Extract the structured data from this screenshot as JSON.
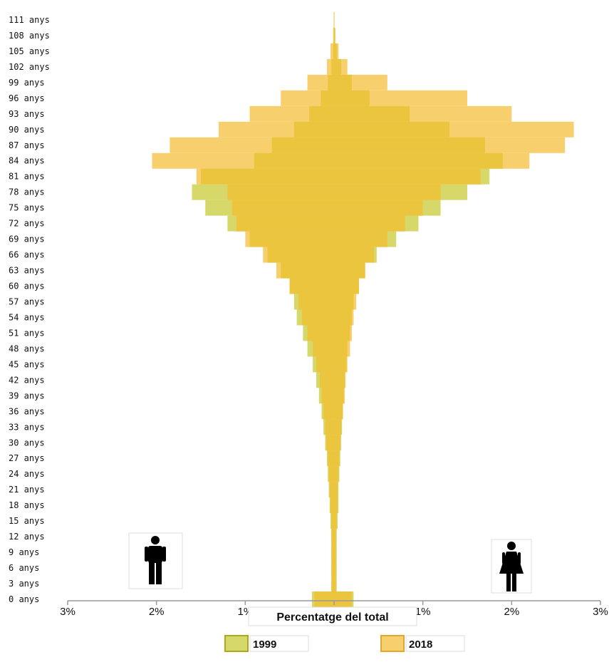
{
  "chart_data": {
    "type": "bar",
    "subtype": "population-pyramid",
    "xlabel": "Percentatge del total",
    "x_ticks": [
      "3%",
      "2%",
      "1%",
      "0%",
      "1%",
      "2%",
      "3%"
    ],
    "xlim": [
      -3,
      3
    ],
    "ylim": [
      0,
      111
    ],
    "y_tick_labels": [
      "0 anys",
      "3 anys",
      "6 anys",
      "9 anys",
      "12 anys",
      "15 anys",
      "18 anys",
      "21 anys",
      "24 anys",
      "27 anys",
      "30 anys",
      "33 anys",
      "36 anys",
      "39 anys",
      "42 anys",
      "45 anys",
      "48 anys",
      "51 anys",
      "54 anys",
      "57 anys",
      "60 anys",
      "63 anys",
      "66 anys",
      "69 anys",
      "72 anys",
      "75 anys",
      "78 anys",
      "81 anys",
      "84 anys",
      "87 anys",
      "90 anys",
      "93 anys",
      "96 anys",
      "99 anys",
      "102 anys",
      "105 anys",
      "108 anys",
      "111 anys"
    ],
    "age_step": 3,
    "legend_placement": "bottom",
    "left_icon": "male-icon",
    "right_icon": "female-icon",
    "colors": {
      "1999": "#d6d86a",
      "2018": "#f7cf6d",
      "overlap": "#ecc53e",
      "axis": "#999999"
    },
    "series": [
      {
        "name": "1999",
        "male": [
          0.25,
          0.03,
          0.03,
          0.03,
          0.03,
          0.04,
          0.05,
          0.06,
          0.07,
          0.08,
          0.1,
          0.12,
          0.14,
          0.17,
          0.2,
          0.24,
          0.3,
          0.35,
          0.42,
          0.45,
          0.5,
          0.6,
          0.75,
          0.95,
          1.2,
          1.45,
          1.6,
          1.5,
          0.9,
          0.7,
          0.45,
          0.28,
          0.15,
          0.07,
          0.03,
          0.01,
          0.005,
          0.002
        ],
        "female": [
          0.22,
          0.03,
          0.03,
          0.03,
          0.03,
          0.04,
          0.05,
          0.05,
          0.06,
          0.07,
          0.08,
          0.09,
          0.1,
          0.11,
          0.12,
          0.14,
          0.15,
          0.18,
          0.2,
          0.22,
          0.28,
          0.35,
          0.48,
          0.7,
          0.95,
          1.2,
          1.5,
          1.75,
          1.9,
          1.7,
          1.3,
          0.85,
          0.4,
          0.2,
          0.08,
          0.03,
          0.01,
          0.003
        ]
      },
      {
        "name": "2018",
        "male": [
          0.22,
          0.03,
          0.03,
          0.03,
          0.03,
          0.03,
          0.04,
          0.05,
          0.06,
          0.07,
          0.09,
          0.1,
          0.12,
          0.14,
          0.16,
          0.2,
          0.24,
          0.3,
          0.36,
          0.4,
          0.5,
          0.65,
          0.8,
          1.0,
          1.1,
          1.15,
          1.2,
          1.55,
          2.05,
          1.85,
          1.3,
          0.95,
          0.6,
          0.3,
          0.08,
          0.04,
          0.01,
          0.004
        ],
        "female": [
          0.2,
          0.02,
          0.02,
          0.02,
          0.02,
          0.03,
          0.04,
          0.04,
          0.05,
          0.06,
          0.07,
          0.08,
          0.1,
          0.12,
          0.13,
          0.15,
          0.18,
          0.2,
          0.22,
          0.25,
          0.28,
          0.35,
          0.45,
          0.6,
          0.8,
          1.0,
          1.2,
          1.65,
          2.2,
          2.6,
          2.7,
          2.0,
          1.5,
          0.6,
          0.15,
          0.05,
          0.015,
          0.005
        ]
      }
    ]
  },
  "legend": [
    {
      "label": "1999",
      "color": "#d6d86a",
      "border": "#a8ac1c"
    },
    {
      "label": "2018",
      "color": "#f7cf6d",
      "border": "#e0a82e"
    }
  ]
}
